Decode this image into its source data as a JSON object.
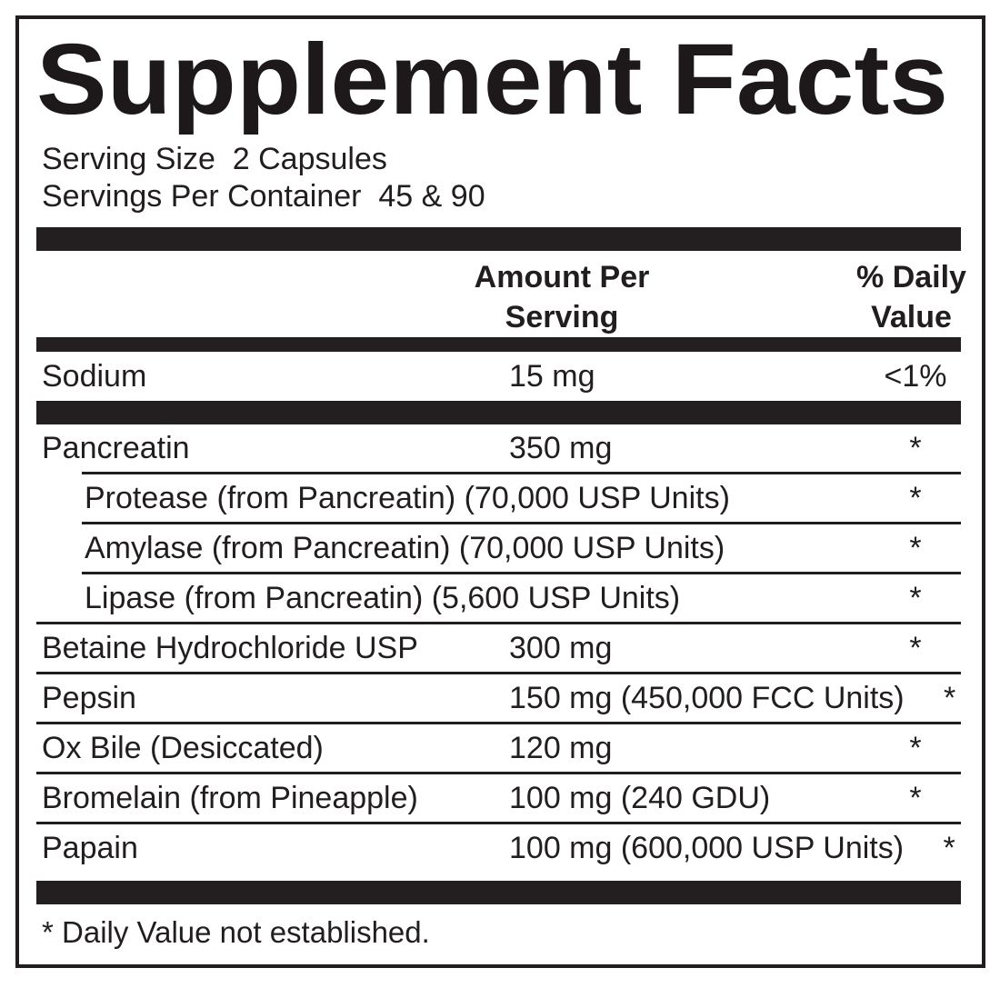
{
  "label": {
    "version": "V2",
    "title": "Supplement Facts",
    "serving_size_line": "Serving Size  2 Capsules",
    "servings_per_container_line": "Servings Per Container  45 & 90",
    "footnote": "* Daily Value not established."
  },
  "table": {
    "header": {
      "amount_line1": "Amount Per",
      "amount_line2": "Serving",
      "dv_line1": "% Daily",
      "dv_line2": "Value"
    },
    "sodium_row": {
      "name": "Sodium",
      "amount": "15 mg",
      "dv": "<1%"
    },
    "ingredients": [
      {
        "name": "Pancreatin",
        "amount": "350 mg",
        "dv": "*",
        "indented": false
      },
      {
        "name": "Protease (from Pancreatin) (70,000 USP Units)",
        "amount": "",
        "dv": "*",
        "indented": true
      },
      {
        "name": "Amylase (from Pancreatin) (70,000 USP Units)",
        "amount": "",
        "dv": "*",
        "indented": true
      },
      {
        "name": "Lipase (from Pancreatin) (5,600 USP Units)",
        "amount": "",
        "dv": "*",
        "indented": true
      },
      {
        "name": "Betaine Hydrochloride USP",
        "amount": "300 mg",
        "dv": "*",
        "indented": false
      },
      {
        "name": "Pepsin",
        "amount": "150 mg (450,000 FCC Units)",
        "dv": "*",
        "indented": false
      },
      {
        "name": "Ox Bile (Desiccated)",
        "amount": "120 mg",
        "dv": "*",
        "indented": false
      },
      {
        "name": "Bromelain (from Pineapple)",
        "amount": "100 mg (240 GDU)",
        "dv": "*",
        "indented": false
      },
      {
        "name": "Papain",
        "amount": "100 mg (600,000 USP Units)",
        "dv": "*",
        "indented": false
      }
    ]
  },
  "colors": {
    "ink": "#221e1f",
    "bar": "#231f20",
    "background": "#ffffff"
  }
}
